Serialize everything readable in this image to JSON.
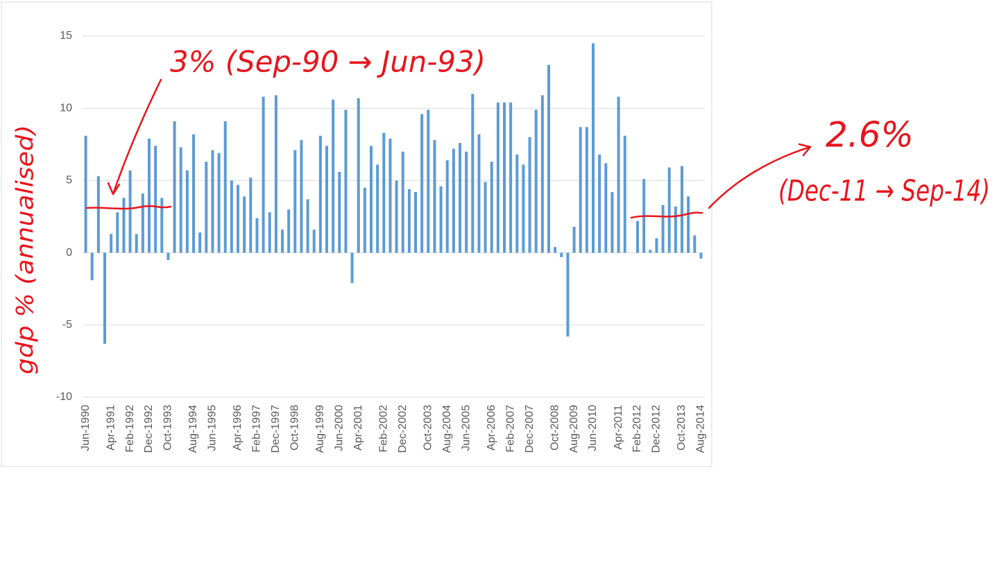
{
  "chart_data": {
    "type": "bar",
    "y_axis_note": "gdp % (annualised)",
    "annotations": [
      "3% (Sep-90 → Jun-93)",
      "2.6%",
      "(Dec-11 → Sep-14)"
    ],
    "color": "#5b9bd5",
    "ylim": [
      -10,
      15
    ],
    "yticks": [
      -10,
      -5,
      0,
      5,
      10,
      15
    ],
    "grid": true,
    "categories": [
      "Jun-1990",
      null,
      null,
      null,
      "Apr-1991",
      null,
      null,
      "Feb-1992",
      null,
      null,
      "Dec-1992",
      null,
      null,
      "Oct-1993",
      null,
      null,
      null,
      "Aug-1994",
      null,
      null,
      "Jun-1995",
      null,
      null,
      null,
      "Apr-1996",
      null,
      null,
      "Feb-1997",
      null,
      null,
      "Dec-1997",
      null,
      null,
      "Oct-1998",
      null,
      null,
      null,
      "Aug-1999",
      null,
      null,
      "Jun-2000",
      null,
      null,
      "Apr-2001",
      null,
      null,
      null,
      "Feb-2002",
      null,
      null,
      "Dec-2002",
      null,
      null,
      null,
      "Oct-2003",
      null,
      null,
      "Aug-2004",
      null,
      null,
      "Jun-2005",
      null,
      null,
      null,
      "Apr-2006",
      null,
      null,
      "Feb-2007",
      null,
      null,
      "Dec-2007",
      null,
      null,
      null,
      "Oct-2008",
      null,
      null,
      "Aug-2009",
      null,
      null,
      "Jun-2010",
      null,
      null,
      null,
      "Apr-2011",
      null,
      null,
      "Feb-2012",
      null,
      null,
      "Dec-2012",
      null,
      null,
      null,
      "Oct-2013",
      null,
      null,
      "Aug-2014"
    ],
    "values": [
      8.1,
      -1.9,
      5.3,
      -6.3,
      1.3,
      2.8,
      3.8,
      5.7,
      1.3,
      4.1,
      7.9,
      7.4,
      3.8,
      -0.5,
      9.1,
      7.3,
      5.7,
      8.2,
      1.4,
      6.3,
      7.1,
      6.9,
      9.1,
      5.0,
      4.7,
      3.9,
      5.2,
      2.4,
      10.8,
      2.8,
      10.9,
      1.6,
      3.0,
      7.1,
      7.8,
      3.7,
      1.6,
      8.1,
      7.4,
      10.6,
      5.6,
      9.9,
      -2.1,
      10.7,
      4.5,
      7.4,
      6.1,
      8.3,
      7.9,
      5.0,
      7.0,
      4.4,
      4.2,
      9.6,
      9.9,
      7.8,
      4.6,
      6.4,
      7.2,
      7.6,
      7.0,
      11.0,
      8.2,
      4.9,
      6.3,
      10.4,
      10.4,
      10.4,
      6.8,
      6.1,
      8.0,
      9.9,
      10.9,
      13.0,
      0.4,
      -0.3,
      -5.8,
      1.8,
      8.7,
      8.7,
      14.5,
      6.8,
      6.2,
      4.2,
      10.8,
      8.1,
      0,
      2.2,
      5.1,
      0.2,
      1.0,
      3.3,
      5.9,
      3.2,
      6.0,
      3.9,
      1.2,
      -0.4
    ]
  }
}
